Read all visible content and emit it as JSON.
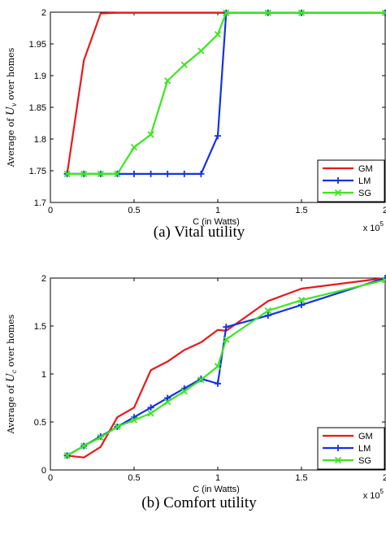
{
  "chart_data": [
    {
      "type": "line",
      "caption": "(a) Vital utility",
      "xlabel": "C (in Watts)",
      "ylabel": "Average of U_v over homes",
      "x_multiplier": "x 10^5",
      "xlim": [
        0,
        2
      ],
      "ylim": [
        1.7,
        2
      ],
      "xticks": [
        0,
        0.5,
        1,
        1.5,
        2
      ],
      "xtick_labels": [
        "0",
        "0.5",
        "1",
        "1.5",
        "2"
      ],
      "yticks": [
        1.7,
        1.75,
        1.8,
        1.85,
        1.9,
        1.95,
        2
      ],
      "ytick_labels": [
        "1.7",
        "1.75",
        "1.8",
        "1.85",
        "1.9",
        "1.95",
        "2"
      ],
      "legend": "bottom-right",
      "grid": false,
      "series": [
        {
          "name": "GM",
          "color": "#e8191c",
          "marker": "none",
          "x": [
            0.1,
            0.2,
            0.3,
            0.4,
            0.5,
            0.6,
            0.7,
            0.8,
            0.9,
            1.0,
            1.05,
            1.3,
            1.5,
            2.0
          ],
          "y": [
            1.745,
            1.924,
            1.998,
            1.999,
            1.999,
            1.999,
            1.999,
            1.999,
            1.999,
            1.999,
            1.999,
            1.999,
            1.999,
            1.999
          ]
        },
        {
          "name": "LM",
          "color": "#1432e6",
          "marker": "plus",
          "x": [
            0.1,
            0.2,
            0.3,
            0.4,
            0.5,
            0.6,
            0.7,
            0.8,
            0.9,
            1.0,
            1.05,
            1.3,
            1.5,
            2.0
          ],
          "y": [
            1.745,
            1.745,
            1.745,
            1.745,
            1.745,
            1.745,
            1.745,
            1.745,
            1.745,
            1.805,
            1.999,
            1.999,
            1.999,
            1.999
          ]
        },
        {
          "name": "SG",
          "color": "#3ce61e",
          "marker": "x",
          "x": [
            0.1,
            0.2,
            0.3,
            0.4,
            0.5,
            0.6,
            0.7,
            0.8,
            0.9,
            1.0,
            1.05,
            1.3,
            1.5,
            2.0
          ],
          "y": [
            1.745,
            1.745,
            1.745,
            1.745,
            1.787,
            1.807,
            1.892,
            1.917,
            1.939,
            1.965,
            1.999,
            1.999,
            1.999,
            1.999
          ]
        }
      ]
    },
    {
      "type": "line",
      "caption": "(b) Comfort utility",
      "xlabel": "C (in Watts)",
      "ylabel": "Average of U_c over homes",
      "x_multiplier": "x 10^5",
      "xlim": [
        0,
        2
      ],
      "ylim": [
        0,
        2
      ],
      "xticks": [
        0,
        0.5,
        1,
        1.5,
        2
      ],
      "xtick_labels": [
        "0",
        "0.5",
        "1",
        "1.5",
        "2"
      ],
      "yticks": [
        0,
        0.5,
        1,
        1.5,
        2
      ],
      "ytick_labels": [
        "0",
        "0.5",
        "1",
        "1.5",
        "2"
      ],
      "legend": "bottom-right",
      "grid": false,
      "series": [
        {
          "name": "GM",
          "color": "#e8191c",
          "marker": "none",
          "x": [
            0.1,
            0.2,
            0.3,
            0.4,
            0.5,
            0.6,
            0.7,
            0.8,
            0.9,
            1.0,
            1.05,
            1.3,
            1.5,
            2.0
          ],
          "y": [
            0.15,
            0.13,
            0.24,
            0.55,
            0.65,
            1.04,
            1.13,
            1.25,
            1.33,
            1.46,
            1.45,
            1.76,
            1.89,
            2.0
          ]
        },
        {
          "name": "LM",
          "color": "#1432e6",
          "marker": "plus",
          "x": [
            0.1,
            0.2,
            0.3,
            0.4,
            0.5,
            0.6,
            0.7,
            0.8,
            0.9,
            1.0,
            1.05,
            1.3,
            1.5,
            2.0
          ],
          "y": [
            0.15,
            0.25,
            0.35,
            0.45,
            0.55,
            0.65,
            0.75,
            0.85,
            0.95,
            0.9,
            1.49,
            1.61,
            1.72,
            2.0
          ]
        },
        {
          "name": "SG",
          "color": "#3ce61e",
          "marker": "x",
          "x": [
            0.1,
            0.2,
            0.3,
            0.4,
            0.5,
            0.6,
            0.7,
            0.8,
            0.9,
            1.0,
            1.05,
            1.3,
            1.5,
            2.0
          ],
          "y": [
            0.15,
            0.25,
            0.34,
            0.45,
            0.52,
            0.59,
            0.71,
            0.82,
            0.94,
            1.08,
            1.36,
            1.66,
            1.77,
            1.98
          ]
        }
      ]
    }
  ]
}
